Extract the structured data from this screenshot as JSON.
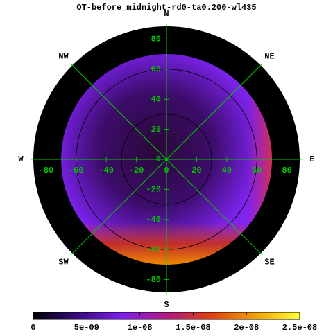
{
  "chart_data": {
    "type": "polar-heatmap",
    "title": "OT-before_midnight-rd0-ta0.200-wl435",
    "compass": [
      "N",
      "NE",
      "E",
      "SE",
      "S",
      "SW",
      "W",
      "NW"
    ],
    "xlim": [
      -90,
      90
    ],
    "ylim": [
      -90,
      90
    ],
    "xticks": [
      -80,
      -60,
      -40,
      -20,
      0,
      20,
      40,
      60,
      80
    ],
    "yticks": [
      -80,
      -60,
      -40,
      -20,
      0,
      20,
      40,
      60,
      80
    ],
    "rgrid": [
      30,
      60
    ],
    "axis_color": "#00c800",
    "colorbar": {
      "lim": [
        0,
        2.5e-08
      ],
      "ticks": [
        0,
        {
          "value": 5e-09,
          "label": "5e-09"
        },
        {
          "value": 1e-08,
          "label": "1e-08"
        },
        {
          "value": 1.5e-08,
          "label": "1.5e-08"
        },
        {
          "value": 2e-08,
          "label": "2e-08"
        },
        {
          "value": 2.5e-08,
          "label": "2.5e-08"
        }
      ],
      "colors": [
        "#000000",
        "#3a0a80",
        "#7a20f0",
        "#b01880",
        "#e04010",
        "#f5a000",
        "#ffff30"
      ]
    }
  }
}
